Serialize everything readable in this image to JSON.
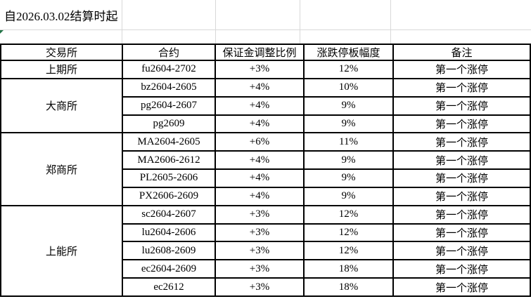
{
  "page": {
    "title": "自2026.03.02结算时起"
  },
  "colors": {
    "border": "#000000",
    "gridline": "#d8d8d8",
    "error_indicator_green": "#217346",
    "text": "#000000",
    "bg": "#ffffff"
  },
  "table": {
    "headers": [
      "交易所",
      "合约",
      "保证金调整比例",
      "涨跌停板幅度",
      "备注"
    ],
    "groups": [
      {
        "exchange": "上期所",
        "rows": [
          {
            "contract": "fu2604-2702",
            "margin": "+3%",
            "limit": "12%",
            "note": "第一个涨停"
          }
        ]
      },
      {
        "exchange": "大商所",
        "rows": [
          {
            "contract": "bz2604-2605",
            "margin": "+4%",
            "limit": "10%",
            "note": "第一个涨停"
          },
          {
            "contract": "pg2604-2607",
            "margin": "+4%",
            "limit": "9%",
            "note": "第一个涨停"
          },
          {
            "contract": "pg2609",
            "margin": "+4%",
            "limit": "9%",
            "note": "第一个涨停"
          }
        ]
      },
      {
        "exchange": "郑商所",
        "rows": [
          {
            "contract": "MA2604-2605",
            "margin": "+6%",
            "limit": "11%",
            "note": "第一个涨停"
          },
          {
            "contract": "MA2606-2612",
            "margin": "+4%",
            "limit": "9%",
            "note": "第一个涨停"
          },
          {
            "contract": "PL2605-2606",
            "margin": "+4%",
            "limit": "9%",
            "note": "第一个涨停"
          },
          {
            "contract": "PX2606-2609",
            "margin": "+4%",
            "limit": "9%",
            "note": "第一个涨停"
          }
        ]
      },
      {
        "exchange": "上能所",
        "rows": [
          {
            "contract": "sc2604-2607",
            "margin": "+3%",
            "limit": "12%",
            "note": "第一个涨停"
          },
          {
            "contract": "lu2604-2606",
            "margin": "+3%",
            "limit": "12%",
            "note": "第一个涨停"
          },
          {
            "contract": "lu2608-2609",
            "margin": "+3%",
            "limit": "12%",
            "note": "第一个涨停"
          },
          {
            "contract": "ec2604-2609",
            "margin": "+3%",
            "limit": "18%",
            "note": "第一个涨停"
          },
          {
            "contract": "ec2612",
            "margin": "+3%",
            "limit": "18%",
            "note": "第一个涨停"
          }
        ]
      }
    ]
  }
}
